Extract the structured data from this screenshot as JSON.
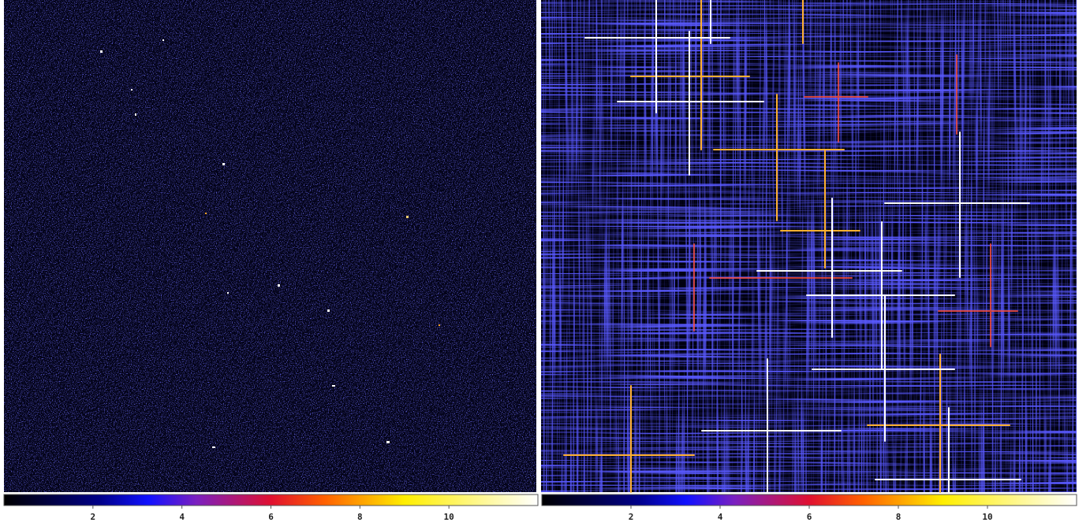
{
  "panels": [
    {
      "colorbar": {
        "range": [
          0,
          12
        ],
        "ticks": [
          2,
          4,
          6,
          8,
          10
        ]
      }
    },
    {
      "colorbar": {
        "range": [
          0,
          12
        ],
        "ticks": [
          2,
          4,
          6,
          8,
          10
        ]
      }
    }
  ]
}
